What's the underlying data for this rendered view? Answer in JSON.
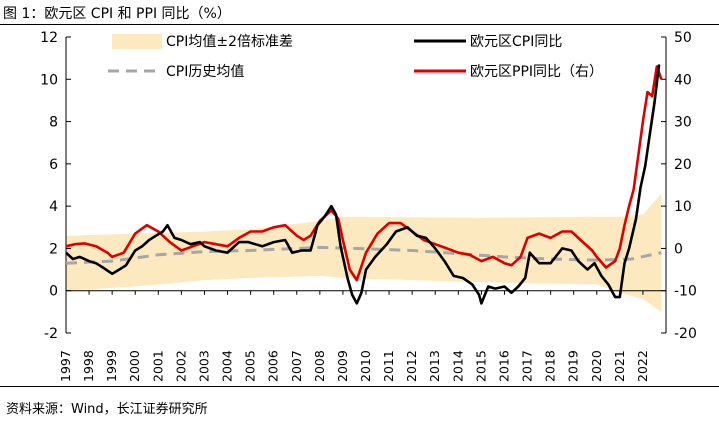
{
  "figure": {
    "title": "图 1：欧元区 CPI 和 PPI 同比（%）",
    "source": "资料来源：Wind，长江证券研究所"
  },
  "colors": {
    "cpi": "#000000",
    "ppi": "#dd0000",
    "band": "#fde9bf",
    "mean": "#a6a6a6"
  },
  "chart_data": {
    "type": "line",
    "title": "",
    "legend_position": "top",
    "grid": false,
    "x_axis": {
      "labels": [
        "1997",
        "1998",
        "1999",
        "2000",
        "2001",
        "2002",
        "2003",
        "2004",
        "2005",
        "2006",
        "2007",
        "2008",
        "2009",
        "2010",
        "2011",
        "2012",
        "2013",
        "2014",
        "2015",
        "2016",
        "2017",
        "2018",
        "2019",
        "2020",
        "2021",
        "2022"
      ],
      "range": [
        1997,
        2023
      ]
    },
    "y_left": {
      "ylim": [
        -2,
        12
      ],
      "ticks": [
        "-2",
        "0",
        "2",
        "4",
        "6",
        "8",
        "10",
        "12"
      ]
    },
    "y_right": {
      "ylim": [
        -20,
        50
      ],
      "ticks": [
        "-20",
        "-10",
        "0",
        "10",
        "20",
        "30",
        "40",
        "50"
      ]
    },
    "band_label": "CPI均值±2倍标准差",
    "mean_label": "CPI历史均值",
    "series": [
      {
        "name": "欧元区CPI同比",
        "axis": "left",
        "x": [
          1997.0,
          1997.3,
          1997.6,
          1998.0,
          1998.3,
          1998.6,
          1999.0,
          1999.3,
          1999.6,
          2000.0,
          2000.3,
          2000.6,
          2000.9,
          2001.2,
          2001.4,
          2001.7,
          2002.0,
          2002.4,
          2002.8,
          2003.0,
          2003.5,
          2004.0,
          2004.5,
          2004.9,
          2005.5,
          2006.0,
          2006.5,
          2006.8,
          2007.2,
          2007.6,
          2007.9,
          2008.2,
          2008.5,
          2008.7,
          2008.9,
          2009.2,
          2009.4,
          2009.6,
          2009.8,
          2010.0,
          2010.4,
          2010.9,
          2011.3,
          2011.8,
          2012.2,
          2012.6,
          2013.0,
          2013.4,
          2013.8,
          2014.2,
          2014.6,
          2014.9,
          2015.0,
          2015.3,
          2015.6,
          2016.0,
          2016.3,
          2016.6,
          2016.9,
          2017.1,
          2017.5,
          2018.0,
          2018.5,
          2018.9,
          2019.2,
          2019.6,
          2019.9,
          2020.2,
          2020.5,
          2020.8,
          2021.0,
          2021.2,
          2021.4,
          2021.7,
          2021.9,
          2022.1,
          2022.3,
          2022.5,
          2022.7
        ],
        "values": [
          1.8,
          1.5,
          1.6,
          1.4,
          1.3,
          1.1,
          0.8,
          1.0,
          1.2,
          1.9,
          2.1,
          2.4,
          2.6,
          2.8,
          3.1,
          2.5,
          2.4,
          2.2,
          2.3,
          2.1,
          1.9,
          1.8,
          2.3,
          2.3,
          2.1,
          2.3,
          2.4,
          1.8,
          1.9,
          1.9,
          3.1,
          3.5,
          4.0,
          3.6,
          2.1,
          0.6,
          -0.2,
          -0.6,
          -0.1,
          1.0,
          1.6,
          2.2,
          2.8,
          3.0,
          2.6,
          2.5,
          2.0,
          1.4,
          0.7,
          0.6,
          0.3,
          -0.2,
          -0.6,
          0.2,
          0.1,
          0.2,
          -0.1,
          0.2,
          0.6,
          1.8,
          1.3,
          1.3,
          2.0,
          1.9,
          1.4,
          1.0,
          1.3,
          0.7,
          0.3,
          -0.3,
          -0.3,
          1.3,
          2.0,
          3.4,
          4.9,
          5.9,
          7.4,
          8.9,
          10.7
        ]
      },
      {
        "name": "欧元区PPI同比（右）",
        "axis": "right",
        "x": [
          1997.0,
          1997.4,
          1997.8,
          1998.3,
          1998.8,
          1999.0,
          1999.5,
          2000.0,
          2000.5,
          2001.0,
          2001.5,
          2002.0,
          2002.5,
          2003.0,
          2003.5,
          2004.0,
          2004.5,
          2005.0,
          2005.5,
          2006.0,
          2006.5,
          2007.0,
          2007.3,
          2007.6,
          2008.0,
          2008.5,
          2008.8,
          2009.0,
          2009.3,
          2009.6,
          2010.0,
          2010.5,
          2011.0,
          2011.5,
          2012.0,
          2012.5,
          2013.0,
          2013.5,
          2014.0,
          2014.5,
          2015.0,
          2015.5,
          2016.0,
          2016.3,
          2016.7,
          2017.0,
          2017.5,
          2018.0,
          2018.5,
          2018.9,
          2019.3,
          2019.8,
          2020.0,
          2020.4,
          2020.8,
          2021.0,
          2021.2,
          2021.4,
          2021.6,
          2021.8,
          2022.0,
          2022.2,
          2022.4,
          2022.6,
          2022.8
        ],
        "values": [
          0.5,
          1.0,
          1.2,
          0.5,
          -1.0,
          -2.0,
          -1.0,
          3.5,
          5.5,
          4.0,
          1.5,
          -0.5,
          0.5,
          1.5,
          1.0,
          0.5,
          2.5,
          4.0,
          4.0,
          5.0,
          5.5,
          3.0,
          2.0,
          3.0,
          6.5,
          9.0,
          7.0,
          2.0,
          -5.0,
          -7.5,
          -1.0,
          3.5,
          6.0,
          6.0,
          4.0,
          2.0,
          1.0,
          0.0,
          -1.0,
          -1.5,
          -3.0,
          -2.0,
          -3.5,
          -4.0,
          -2.0,
          2.5,
          3.5,
          2.5,
          4.0,
          4.0,
          2.0,
          -0.5,
          -2.0,
          -4.5,
          -3.0,
          0.0,
          5.5,
          10.0,
          14.0,
          22.0,
          30.0,
          37.0,
          36.0,
          43.0,
          40.0
        ]
      },
      {
        "name": "CPI历史均值",
        "axis": "left",
        "x": [
          1997.0,
          1999.0,
          2001.0,
          2003.0,
          2005.0,
          2008.0,
          2009.5,
          2012.0,
          2014.0,
          2016.0,
          2018.0,
          2020.0,
          2021.5,
          2022.8
        ],
        "values": [
          1.3,
          1.4,
          1.7,
          1.85,
          1.9,
          2.05,
          2.0,
          1.9,
          1.75,
          1.6,
          1.5,
          1.45,
          1.5,
          1.8
        ]
      }
    ],
    "band": {
      "x": [
        1997.0,
        2000.0,
        2003.0,
        2005.0,
        2008.0,
        2009.0,
        2015.0,
        2020.0,
        2021.0,
        2022.0,
        2022.8
      ],
      "upper": [
        2.6,
        2.7,
        2.8,
        2.9,
        3.3,
        3.5,
        3.45,
        3.5,
        3.5,
        3.6,
        4.6
      ],
      "lower": [
        0.0,
        0.2,
        0.5,
        0.6,
        0.7,
        0.6,
        0.4,
        0.3,
        -0.1,
        -0.4,
        -1.0
      ]
    }
  }
}
